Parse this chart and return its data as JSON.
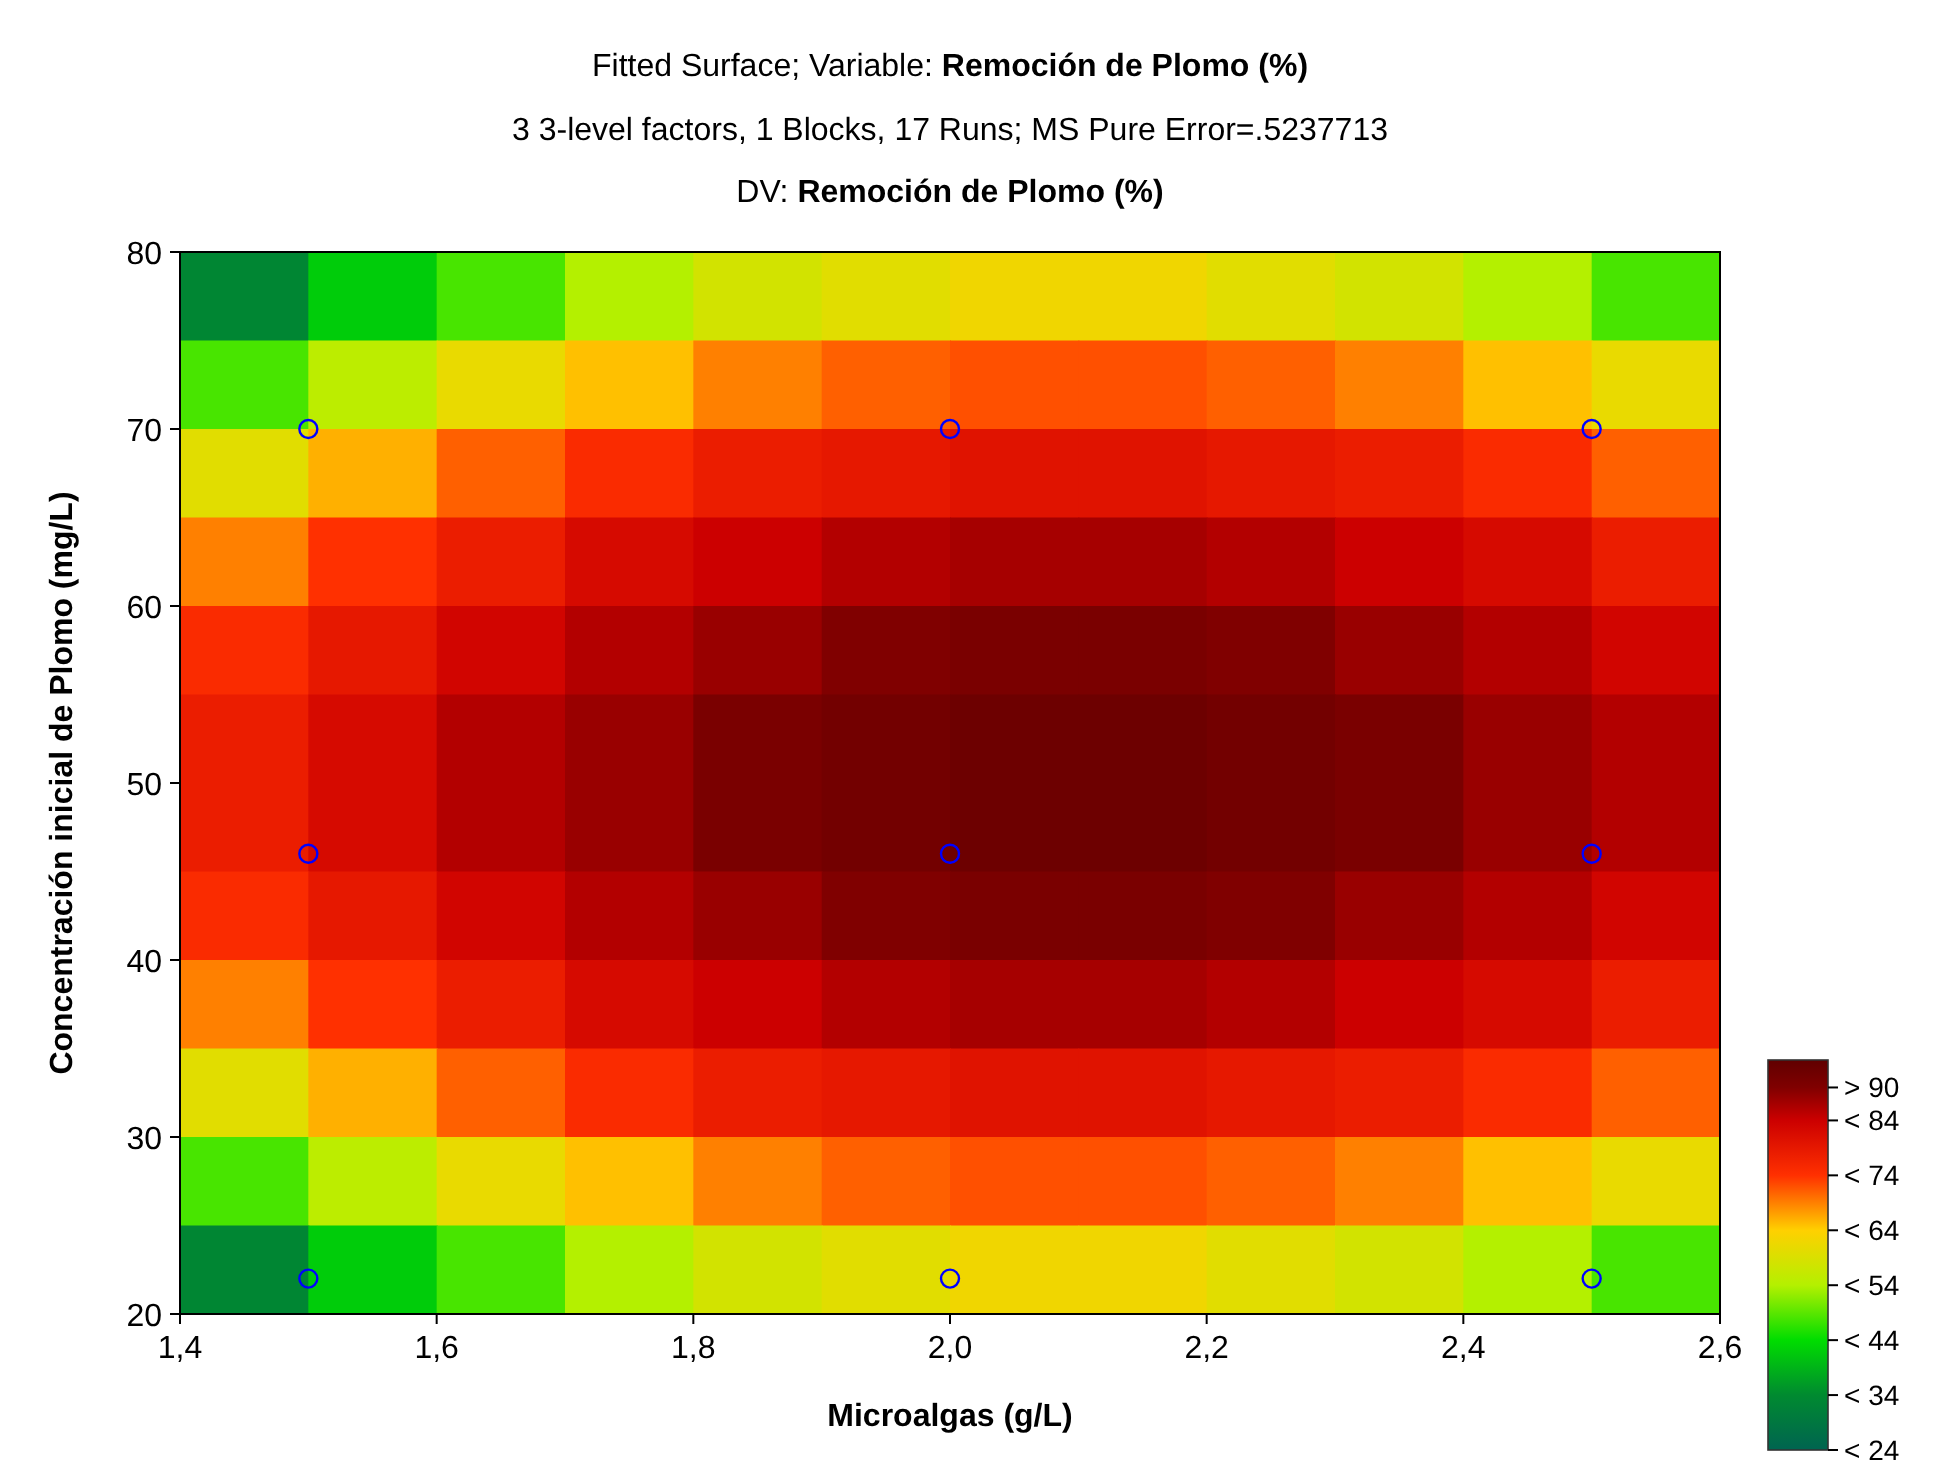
{
  "chart_data": {
    "type": "heatmap",
    "title": "Fitted Surface; Variable: Remoción de Plomo (%)",
    "subtitle": "3 3-level factors, 1 Blocks, 17 Runs; MS Pure Error=.5237713\nDV: Remoción de Plomo (%)",
    "xlabel": "Microalgas (g/L)",
    "ylabel": "Concentración inicial de Plomo (mg/L)",
    "xlim": [
      1.4,
      2.6
    ],
    "xticks": [
      {
        "value": 1.4,
        "label": "1,4"
      },
      {
        "value": 1.6,
        "label": "1,6"
      },
      {
        "value": 1.8,
        "label": "1,8"
      },
      {
        "value": 2.0,
        "label": "2,0"
      },
      {
        "value": 2.2,
        "label": "2,2"
      },
      {
        "value": 2.4,
        "label": "2,4"
      },
      {
        "value": 2.6,
        "label": "2,6"
      }
    ],
    "ylim": [
      20,
      80
    ],
    "yticks": [
      20,
      30,
      40,
      50,
      60,
      70,
      80
    ],
    "cells": [
      [
        33,
        42,
        48,
        54,
        58,
        60,
        62,
        62,
        60,
        58,
        54,
        48
      ],
      [
        48,
        55,
        61,
        65,
        69,
        71,
        72,
        72,
        71,
        69,
        65,
        61
      ],
      [
        60,
        66,
        71,
        75,
        78,
        79,
        80,
        80,
        79,
        78,
        75,
        71
      ],
      [
        69,
        74,
        78,
        82,
        84,
        86,
        87,
        87,
        86,
        84,
        82,
        78
      ],
      [
        75,
        79,
        83,
        86,
        88,
        90,
        91,
        91,
        90,
        88,
        86,
        83
      ],
      [
        78,
        82,
        86,
        88,
        91,
        92,
        93,
        93,
        92,
        91,
        88,
        86
      ],
      [
        78,
        82,
        86,
        88,
        91,
        92,
        93,
        93,
        92,
        91,
        88,
        86
      ],
      [
        75,
        79,
        83,
        86,
        88,
        90,
        91,
        91,
        90,
        88,
        86,
        83
      ],
      [
        69,
        74,
        78,
        82,
        84,
        86,
        87,
        87,
        86,
        84,
        82,
        78
      ],
      [
        60,
        66,
        71,
        75,
        78,
        79,
        80,
        80,
        79,
        78,
        75,
        71
      ],
      [
        48,
        55,
        61,
        65,
        69,
        71,
        72,
        72,
        71,
        69,
        65,
        61
      ],
      [
        33,
        42,
        48,
        54,
        58,
        60,
        62,
        62,
        60,
        58,
        54,
        48
      ]
    ],
    "clim": [
      24,
      95
    ],
    "cticks": [
      {
        "value": 24,
        "label": "< 24"
      },
      {
        "value": 34,
        "label": "< 34"
      },
      {
        "value": 44,
        "label": "< 44"
      },
      {
        "value": 54,
        "label": "< 54"
      },
      {
        "value": 64,
        "label": "< 64"
      },
      {
        "value": 74,
        "label": "< 74"
      },
      {
        "value": 84,
        "label": "< 84"
      },
      {
        "value": 90,
        "label": "> 90"
      }
    ],
    "colors": [
      "#006450",
      "#008a30",
      "#00dd00",
      "#b4f000",
      "#ffd000",
      "#ff3000",
      "#cc0000",
      "#800000"
    ],
    "series": [
      {
        "type": "scatter",
        "color": "#0000ff",
        "marker": "circle",
        "x": [
          1.5,
          2.0,
          2.5,
          1.5,
          2.0,
          2.5,
          1.5,
          2.0,
          2.5
        ],
        "values": [
          70,
          70,
          70,
          46,
          46,
          46,
          22,
          22,
          22
        ]
      }
    ]
  }
}
